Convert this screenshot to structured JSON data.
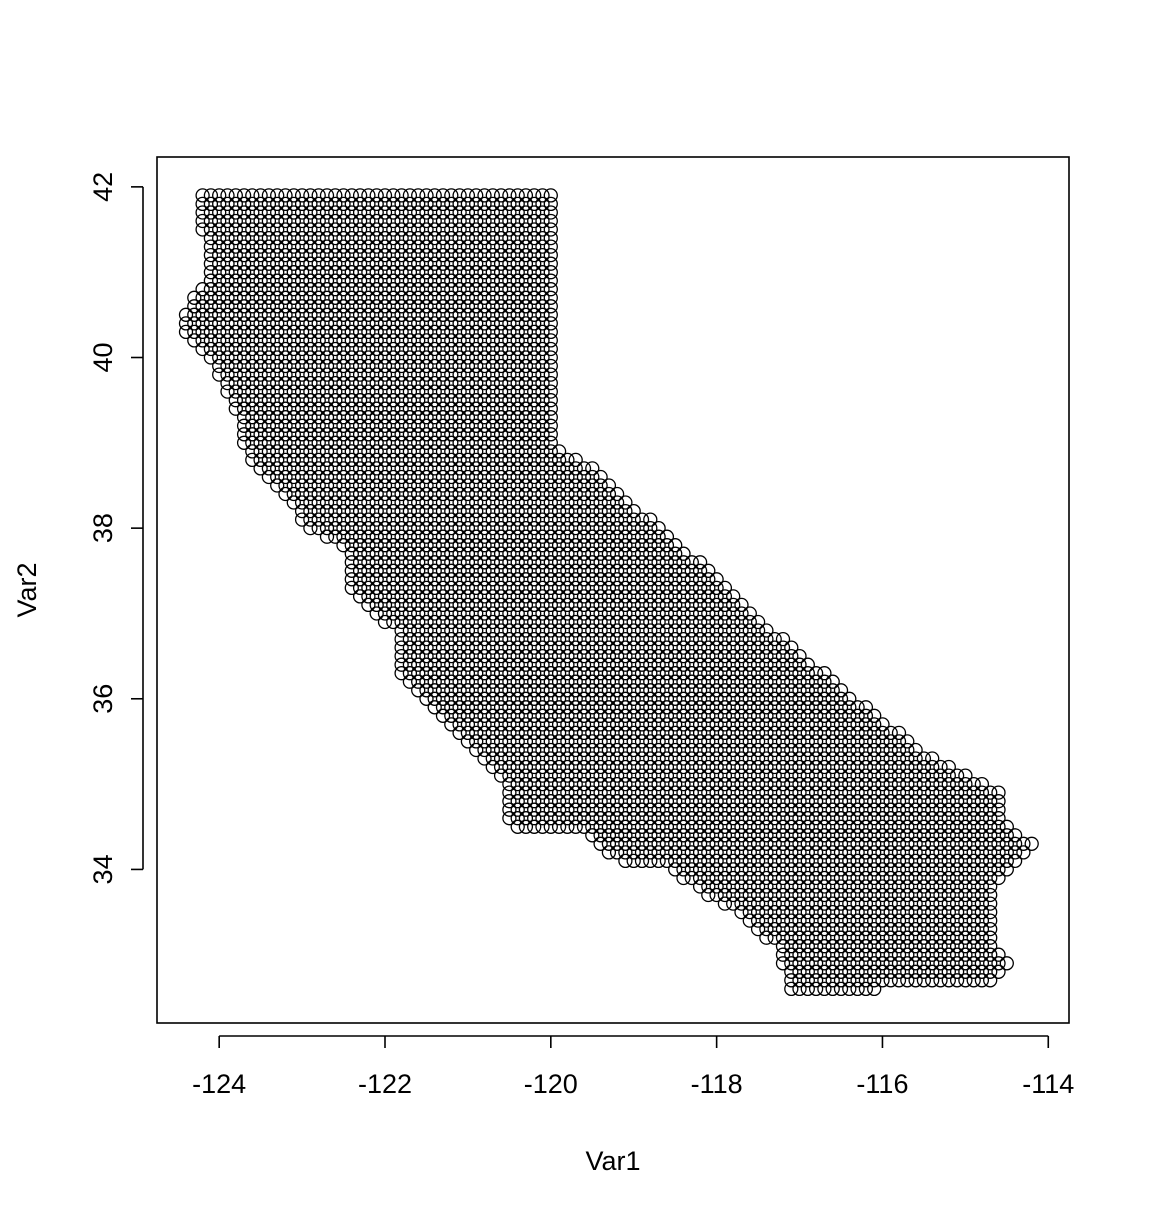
{
  "chart_data": {
    "type": "scatter",
    "xlabel": "Var1",
    "ylabel": "Var2",
    "xlim": [
      -124.75,
      -113.75
    ],
    "ylim": [
      32.2,
      42.35
    ],
    "x_ticks": [
      -124,
      -122,
      -120,
      -118,
      -116,
      -114
    ],
    "y_ticks": [
      34,
      36,
      38,
      40,
      42
    ],
    "x_tick_labels": [
      "-124",
      "-122",
      "-120",
      "-118",
      "-116",
      "-114"
    ],
    "y_tick_labels": [
      "34",
      "36",
      "38",
      "40",
      "42"
    ],
    "grid": false,
    "legend": "none",
    "marker": "open-circle",
    "marker_color": "#000000",
    "grid_step": 0.1,
    "region_outline_lonlat": [
      [
        -124.2,
        42.0
      ],
      [
        -120.0,
        42.0
      ],
      [
        -120.0,
        39.0
      ],
      [
        -119.5,
        38.7
      ],
      [
        -118.2,
        37.6
      ],
      [
        -117.2,
        36.7
      ],
      [
        -116.2,
        35.9
      ],
      [
        -115.4,
        35.3
      ],
      [
        -114.6,
        34.9
      ],
      [
        -114.5,
        34.5
      ],
      [
        -114.2,
        34.3
      ],
      [
        -114.6,
        33.9
      ],
      [
        -114.7,
        33.1
      ],
      [
        -114.5,
        32.9
      ],
      [
        -114.7,
        32.7
      ],
      [
        -116.1,
        32.6
      ],
      [
        -117.1,
        32.5
      ],
      [
        -117.3,
        33.1
      ],
      [
        -117.8,
        33.5
      ],
      [
        -118.3,
        33.8
      ],
      [
        -118.6,
        34.0
      ],
      [
        -119.2,
        34.1
      ],
      [
        -119.6,
        34.4
      ],
      [
        -120.5,
        34.5
      ],
      [
        -120.6,
        35.0
      ],
      [
        -121.0,
        35.4
      ],
      [
        -121.3,
        35.7
      ],
      [
        -121.9,
        36.4
      ],
      [
        -121.9,
        36.8
      ],
      [
        -122.4,
        37.2
      ],
      [
        -122.5,
        37.6
      ],
      [
        -122.5,
        37.8
      ],
      [
        -123.0,
        38.0
      ],
      [
        -123.2,
        38.4
      ],
      [
        -123.7,
        38.9
      ],
      [
        -123.8,
        39.4
      ],
      [
        -124.1,
        40.0
      ],
      [
        -124.4,
        40.3
      ],
      [
        -124.4,
        40.6
      ],
      [
        -124.1,
        41.0
      ],
      [
        -124.2,
        41.5
      ],
      [
        -124.3,
        41.8
      ]
    ]
  }
}
